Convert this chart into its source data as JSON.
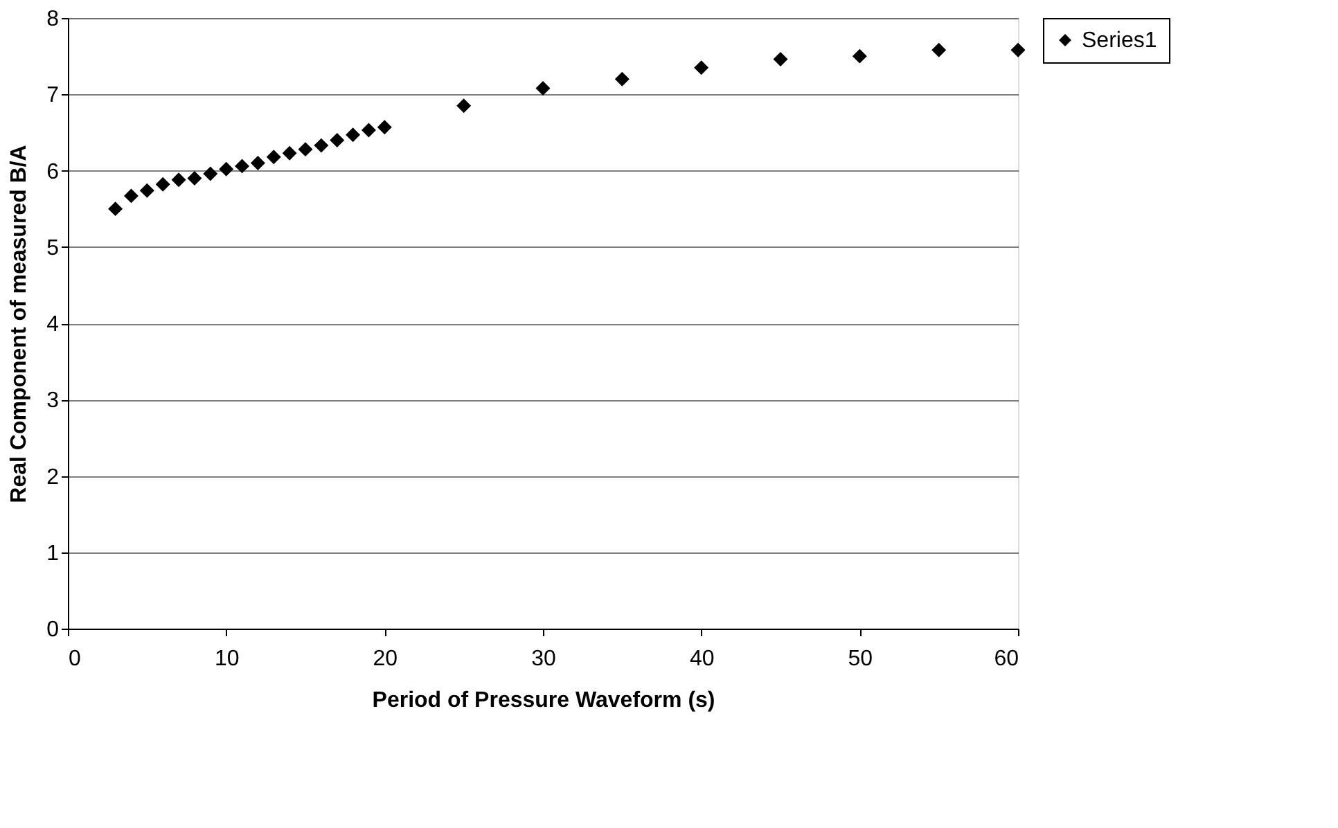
{
  "chart_data": {
    "type": "scatter",
    "xlabel": "Period of Pressure Waveform (s)",
    "ylabel": "Real Component of measured B/A",
    "x": [
      3,
      4,
      5,
      6,
      7,
      8,
      9,
      10,
      11,
      12,
      13,
      14,
      15,
      16,
      17,
      18,
      19,
      20,
      25,
      30,
      35,
      40,
      45,
      50,
      55,
      60
    ],
    "series": [
      {
        "name": "Series1",
        "color": "#000000",
        "values": [
          5.5,
          5.67,
          5.74,
          5.82,
          5.88,
          5.9,
          5.96,
          6.02,
          6.06,
          6.1,
          6.18,
          6.23,
          6.28,
          6.33,
          6.4,
          6.47,
          6.53,
          6.57,
          6.85,
          7.08,
          7.2,
          7.35,
          7.46,
          7.5,
          7.58,
          7.58
        ]
      }
    ],
    "xlim": [
      0,
      60
    ],
    "xticks": [
      0,
      10,
      20,
      30,
      40,
      50,
      60
    ],
    "ylim": [
      0,
      8
    ],
    "yticks": [
      0,
      1,
      2,
      3,
      4,
      5,
      6,
      7,
      8
    ],
    "grid": "y",
    "legend": "right",
    "marker": "diamond"
  }
}
